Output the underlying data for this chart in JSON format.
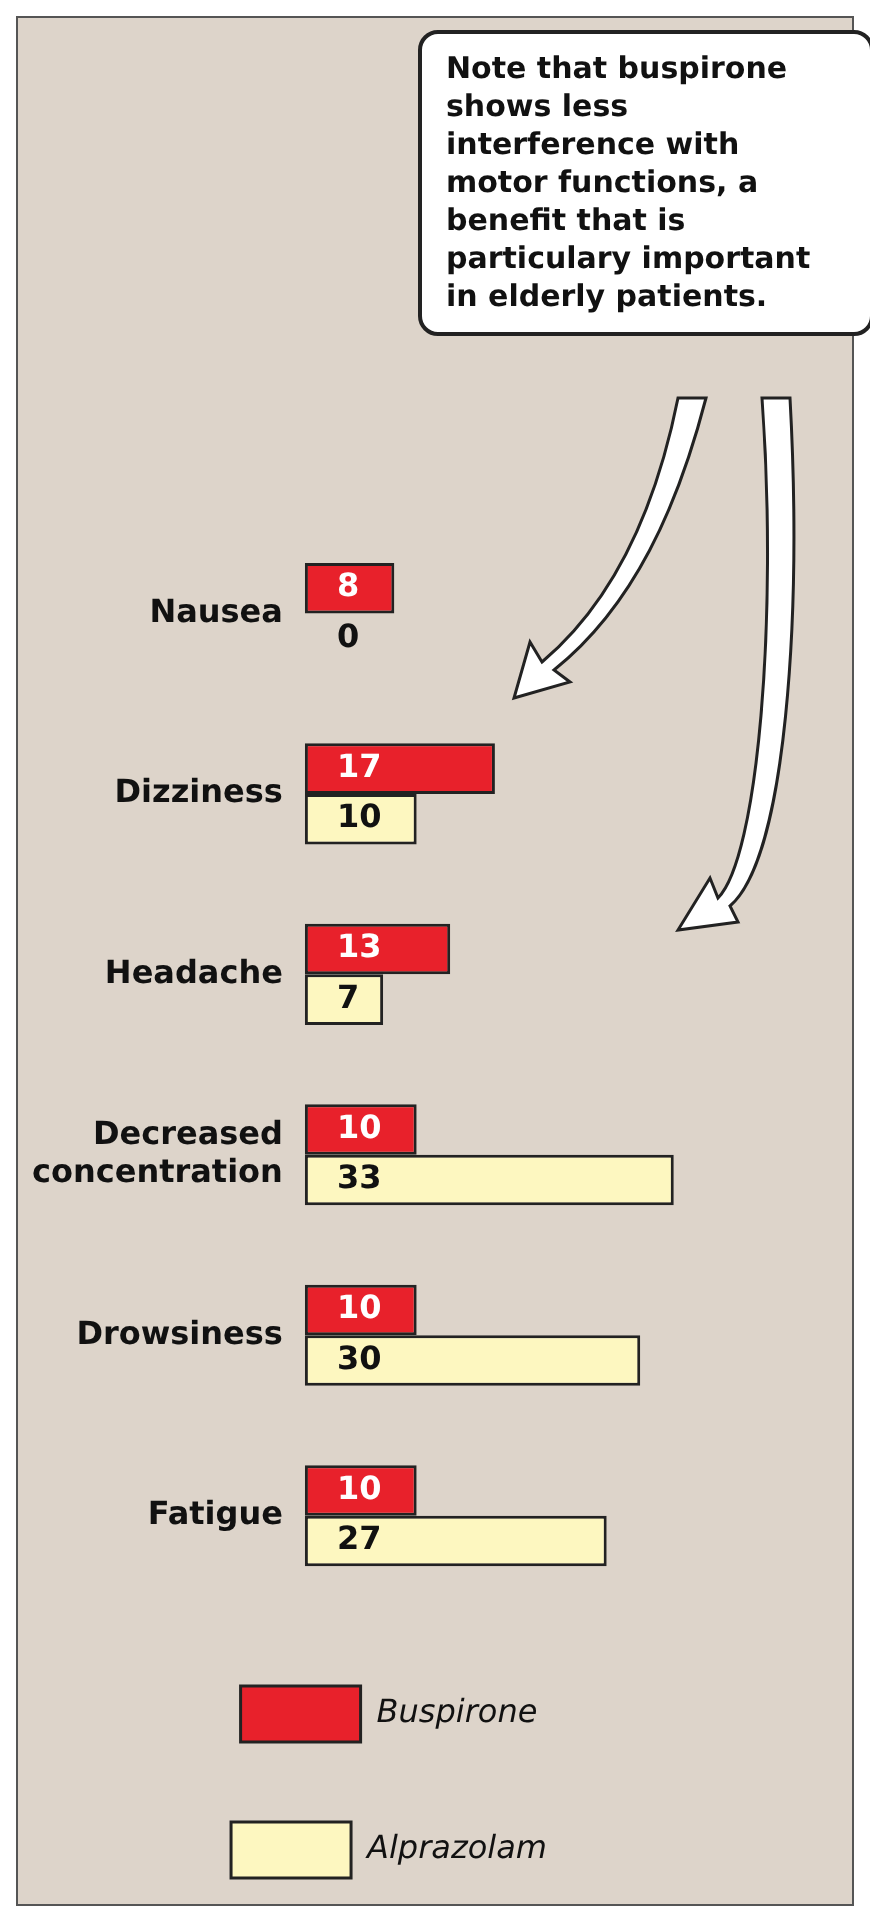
{
  "chart_data": {
    "type": "bar",
    "orientation": "horizontal",
    "categories": [
      "Nausea",
      "Dizziness",
      "Headache",
      "Decreased concentration",
      "Drowsiness",
      "Fatigue"
    ],
    "series": [
      {
        "name": "Buspirone",
        "color": "#e8212b",
        "values": [
          8,
          17,
          13,
          10,
          10,
          10
        ]
      },
      {
        "name": "Alprazolam",
        "color": "#fdf7c0",
        "values": [
          0,
          10,
          7,
          33,
          30,
          27
        ]
      }
    ],
    "data_labels": true,
    "legend": "bottom",
    "grid": false,
    "tick_labels": "y",
    "annotations": [
      "Note that buspirone shows less interference with motor functions, a benefit that is particulary important in elderly patients."
    ]
  }
}
